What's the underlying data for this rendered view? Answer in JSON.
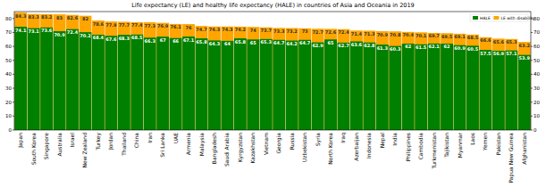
{
  "chart_data": {
    "type": "bar",
    "title": "Life expectancy (LE) and healthy life expectancy (HALE) in countries of Asia and Oceania in 2019",
    "categories": [
      "Japan",
      "South Korea",
      "Singapore",
      "Australia",
      "Israel",
      "New Zealand",
      "Turkey",
      "Jordan",
      "Thailand",
      "China",
      "Iran",
      "Sri Lanka",
      "UAE",
      "Armenia",
      "Malaysia",
      "Bangladesh",
      "Saudi Arabia",
      "Kyrgyzstan",
      "Kazakhstan",
      "Vietnam",
      "Georgia",
      "Russia",
      "Uzbekistan",
      "Syria",
      "North Korea",
      "Iraq",
      "Azerbaijan",
      "Indonesia",
      "Nepal",
      "India",
      "Philippines",
      "Cambodia",
      "Turkmenistan",
      "Tajikistan",
      "Myanmar",
      "Laos",
      "Yemen",
      "Pakistan",
      "Papua New Guinea",
      "Afghanistan"
    ],
    "series": [
      {
        "name": "HALE",
        "color": "#008000",
        "values": [
          74.1,
          73.1,
          73.6,
          70.9,
          72.4,
          70.2,
          68.4,
          67.6,
          68.3,
          68.5,
          66.3,
          67.0,
          66.0,
          67.1,
          65.8,
          64.3,
          64.0,
          65.8,
          65.0,
          65.3,
          64.7,
          64.2,
          64.7,
          62.9,
          65.0,
          62.7,
          63.6,
          62.8,
          61.3,
          60.3,
          62.0,
          61.5,
          62.1,
          62.0,
          60.9,
          60.5,
          57.5,
          56.9,
          57.1,
          53.9
        ]
      },
      {
        "name": "LE with disability",
        "color": "#ffa500",
        "values": [
          84.3,
          83.3,
          83.2,
          83.0,
          82.6,
          82.0,
          78.6,
          77.9,
          77.7,
          77.4,
          77.3,
          76.9,
          76.1,
          76.0,
          74.7,
          74.3,
          74.3,
          74.2,
          74.0,
          73.7,
          73.3,
          73.2,
          73.0,
          72.7,
          72.6,
          72.4,
          71.4,
          71.3,
          70.9,
          70.8,
          70.4,
          70.1,
          69.7,
          69.5,
          69.1,
          68.5,
          66.6,
          65.6,
          65.3,
          63.2
        ]
      }
    ],
    "ylim": [
      0,
      85
    ],
    "yticks": [
      0,
      10,
      20,
      30,
      40,
      50,
      60,
      70,
      80
    ],
    "grid": false,
    "stacked": false,
    "data_labels": true,
    "legend": "top-right"
  }
}
